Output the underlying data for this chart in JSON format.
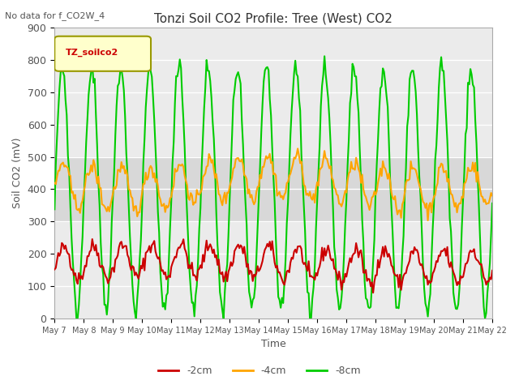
{
  "title": "Tonzi Soil CO2 Profile: Tree (West) CO2",
  "suptitle": "No data for f_CO2W_4",
  "ylabel": "Soil CO2 (mV)",
  "xlabel": "Time",
  "legend_title": "TZ_soilco2",
  "ylim": [
    0,
    900
  ],
  "series": {
    "-2cm": {
      "color": "#cc0000",
      "linewidth": 1.5
    },
    "-4cm": {
      "color": "#ffa500",
      "linewidth": 1.5
    },
    "-8cm": {
      "color": "#00cc00",
      "linewidth": 1.5
    }
  },
  "xtick_labels": [
    "May 7",
    "May 8",
    "May 9",
    "May 10",
    "May 11",
    "May 12",
    "May 13",
    "May 14",
    "May 15",
    "May 16",
    "May 17",
    "May 18",
    "May 19",
    "May 20",
    "May 21",
    "May 22"
  ],
  "shaded_band": [
    300,
    500
  ],
  "background_color": "#ffffff",
  "plot_bg_color": "#ebebeb"
}
